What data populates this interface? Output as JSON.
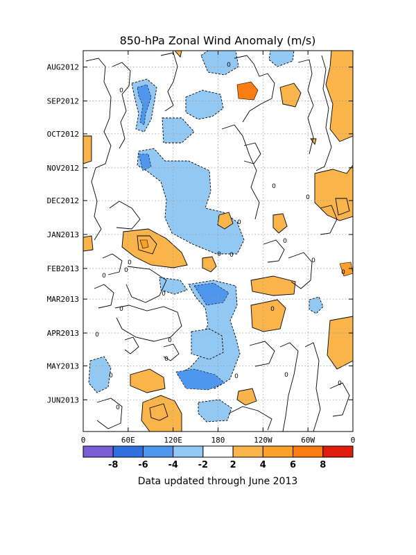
{
  "chart_data": {
    "type": "heatmap",
    "title": "850-hPa Zonal Wind Anomaly (m/s)",
    "xlabel": "",
    "ylabel": "",
    "x_ticks": [
      "0",
      "60E",
      "120E",
      "180",
      "120W",
      "60W",
      "0"
    ],
    "x_range_deg_east": [
      0,
      360
    ],
    "y_ticks": [
      "AUG2012",
      "SEP2012",
      "OCT2012",
      "NOV2012",
      "DEC2012",
      "JAN2013",
      "FEB2013",
      "MAR2013",
      "APR2013",
      "MAY2013",
      "JUN2013"
    ],
    "y_range": [
      "2012-07-17",
      "2013-06-30"
    ],
    "grid": true,
    "contour_interval_ms": 2,
    "contour_label": "0",
    "colorbar": {
      "labels": [
        "-8",
        "-6",
        "-4",
        "-2",
        "2",
        "4",
        "6",
        "8"
      ],
      "colors": [
        "#7a5ed6",
        "#2f6fe0",
        "#4f97ee",
        "#93c8f3",
        "#ffffff",
        "#f9b54b",
        "#fca02c",
        "#fb7c10",
        "#df1d0d"
      ]
    },
    "regions": [
      {
        "sign": "neg",
        "level": "-2",
        "lon": 46,
        "date": "2012-08-25"
      },
      {
        "sign": "neg",
        "level": "-4",
        "lon": 46,
        "date": "2012-08-25"
      },
      {
        "sign": "neg",
        "level": "-2",
        "lon": 97,
        "date": "2012-11-10"
      },
      {
        "sign": "neg",
        "level": "-4",
        "lon": 84,
        "date": "2012-11-25"
      },
      {
        "sign": "neg",
        "level": "-2",
        "lon": 150,
        "date": "2012-08-31"
      },
      {
        "sign": "neg",
        "level": "-2",
        "lon": 115,
        "date": "2012-12-12"
      },
      {
        "sign": "neg",
        "level": "-2",
        "lon": 110,
        "date": "2013-03-03"
      },
      {
        "sign": "neg",
        "level": "-4",
        "lon": 110,
        "date": "2013-03-03"
      },
      {
        "sign": "neg",
        "level": "-2",
        "lon": 110,
        "date": "2013-04-02"
      },
      {
        "sign": "neg",
        "level": "-4",
        "lon": 113,
        "date": "2013-04-14"
      },
      {
        "sign": "neg",
        "level": "-2",
        "lon": 124,
        "date": "2013-05-13"
      },
      {
        "sign": "neg",
        "level": "-2",
        "lon": 124,
        "date": "2013-06-18"
      },
      {
        "sign": "neg",
        "level": "-2",
        "lon": 20,
        "date": "2013-05-01"
      },
      {
        "sign": "neg",
        "level": "-2",
        "lon": 296,
        "date": "2013-03-03"
      },
      {
        "sign": "neg",
        "level": "-2",
        "lon": 177,
        "date": "2012-07-25"
      },
      {
        "sign": "neg",
        "level": "-2",
        "lon": 265,
        "date": "2012-07-20"
      },
      {
        "sign": "pos",
        "level": "2",
        "lon": 136,
        "date": "2012-09-17"
      },
      {
        "sign": "pos",
        "level": "2",
        "lon": 91,
        "date": "2013-01-09"
      },
      {
        "sign": "pos",
        "level": "4",
        "lon": 81,
        "date": "2013-01-05"
      },
      {
        "sign": "pos",
        "level": "6",
        "lon": 81,
        "date": "2013-01-05"
      },
      {
        "sign": "pos",
        "level": "2",
        "lon": 221,
        "date": "2012-08-10"
      },
      {
        "sign": "pos",
        "level": "2",
        "lon": 265,
        "date": "2012-08-14"
      },
      {
        "sign": "pos",
        "level": "2",
        "lon": 328,
        "date": "2012-08-05"
      },
      {
        "sign": "pos",
        "level": "2",
        "lon": 344,
        "date": "2012-10-31"
      },
      {
        "sign": "pos",
        "level": "2",
        "lon": 342,
        "date": "2012-11-29"
      },
      {
        "sign": "pos",
        "level": "2",
        "lon": 8,
        "date": "2012-10-04"
      },
      {
        "sign": "pos",
        "level": "2",
        "lon": 0,
        "date": "2013-01-03"
      },
      {
        "sign": "pos",
        "level": "2",
        "lon": 225,
        "date": "2013-02-18"
      },
      {
        "sign": "pos",
        "level": "2",
        "lon": 237,
        "date": "2013-03-20"
      },
      {
        "sign": "pos",
        "level": "2",
        "lon": 343,
        "date": "2013-03-29"
      },
      {
        "sign": "pos",
        "level": "2",
        "lon": 323,
        "date": "2013-05-17"
      },
      {
        "sign": "pos",
        "level": "2",
        "lon": 92,
        "date": "2013-06-01"
      },
      {
        "sign": "pos",
        "level": "2",
        "lon": 105,
        "date": "2013-06-26"
      },
      {
        "sign": "pos",
        "level": "4",
        "lon": 105,
        "date": "2013-06-26"
      },
      {
        "sign": "pos",
        "level": "2",
        "lon": 282,
        "date": "2012-11-30"
      },
      {
        "sign": "pos",
        "level": "2",
        "lon": 278,
        "date": "2013-02-13"
      },
      {
        "sign": "pos",
        "level": "2",
        "lon": 247,
        "date": "2012-12-05"
      },
      {
        "sign": "pos",
        "level": "2",
        "lon": 170,
        "date": "2013-01-13"
      },
      {
        "sign": "pos",
        "level": "2",
        "lon": 218,
        "date": "2013-06-08"
      }
    ]
  },
  "footer": {
    "note": "Data updated through June 2013"
  }
}
